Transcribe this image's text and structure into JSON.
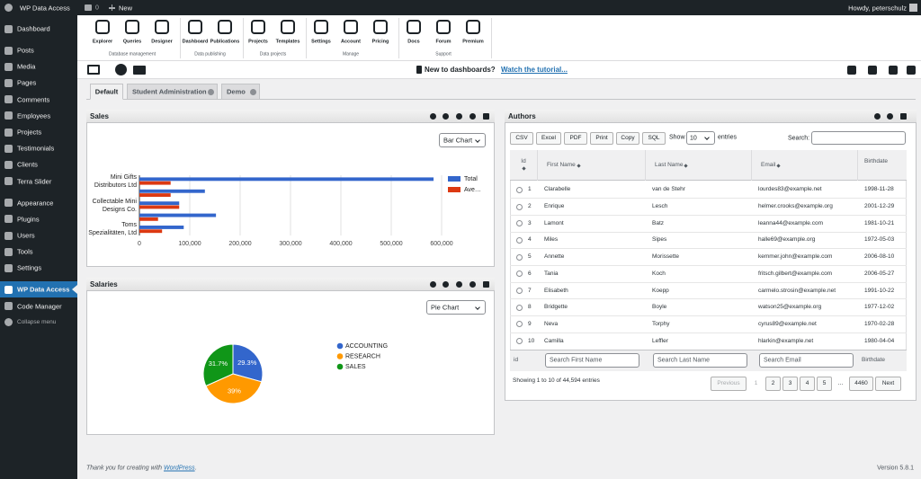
{
  "admin_bar": {
    "site_name": "WP Data Access",
    "comments": "0",
    "new": "New",
    "greeting": "Howdy, peterschulz"
  },
  "sidebar": {
    "items": [
      {
        "label": "Dashboard"
      },
      {
        "label": "Posts"
      },
      {
        "label": "Media"
      },
      {
        "label": "Pages"
      },
      {
        "label": "Comments"
      },
      {
        "label": "Employees"
      },
      {
        "label": "Projects"
      },
      {
        "label": "Testimonials"
      },
      {
        "label": "Clients"
      },
      {
        "label": "Terra Slider"
      },
      {
        "label": "Appearance"
      },
      {
        "label": "Plugins"
      },
      {
        "label": "Users"
      },
      {
        "label": "Tools"
      },
      {
        "label": "Settings"
      },
      {
        "label": "WP Data Access",
        "current": true
      },
      {
        "label": "Code Manager"
      },
      {
        "label": "Collapse menu"
      }
    ]
  },
  "toolbar": {
    "groups": [
      {
        "label": "Database management",
        "tools": [
          "Explorer",
          "Queries",
          "Designer"
        ]
      },
      {
        "label": "Data publishing",
        "tools": [
          "Dashboard",
          "Publications"
        ]
      },
      {
        "label": "Data projects",
        "tools": [
          "Projects",
          "Templates"
        ]
      },
      {
        "label": "Manage",
        "tools": [
          "Settings",
          "Account",
          "Pricing"
        ]
      },
      {
        "label": "Support",
        "tools": [
          "Docs",
          "Forum",
          "Premium"
        ]
      }
    ]
  },
  "notice": {
    "text": "New to dashboards?",
    "link": "Watch the tutorial..."
  },
  "tabs": [
    {
      "label": "Default",
      "active": true
    },
    {
      "label": "Student Administration"
    },
    {
      "label": "Demo"
    }
  ],
  "chart_data": [
    {
      "type": "bar",
      "orientation": "horizontal",
      "title": "Sales",
      "chart_selector": "Bar Chart",
      "categories": [
        "Mini Gifts Distributors Ltd",
        null,
        "Collectable Mini Designs Co.",
        null,
        "Toms Spezialitäten, Ltd"
      ],
      "series": [
        {
          "name": "Total",
          "color": "#3366cc",
          "values": [
            584000,
            130000,
            79000,
            152000,
            88000
          ]
        },
        {
          "name": "Ave…",
          "color": "#dc3912",
          "values": [
            62000,
            62000,
            79000,
            37000,
            45000
          ]
        }
      ],
      "xlim": [
        0,
        600000
      ],
      "xticks": [
        0,
        {
          "value": 100000,
          "label": "100,000"
        },
        {
          "value": 200000,
          "label": "200,000"
        },
        {
          "value": 300000,
          "label": "300,000"
        },
        {
          "value": 400000,
          "label": "400,000"
        },
        {
          "value": 500000,
          "label": "500,000"
        },
        {
          "value": 600000,
          "label": "600,000"
        }
      ],
      "grid": true,
      "legend": "right"
    },
    {
      "type": "pie",
      "title": "Salaries",
      "chart_selector": "Pie Chart",
      "categories": [
        "ACCOUNTING",
        "RESEARCH",
        "SALES"
      ],
      "values": [
        29.3,
        39,
        31.7
      ],
      "value_labels": [
        "29.3%",
        "39%",
        "31.7%"
      ],
      "colors": [
        "#3366cc",
        "#ff9900",
        "#109618"
      ],
      "legend": "right"
    }
  ],
  "authors": {
    "title": "Authors",
    "buttons": [
      "CSV",
      "Excel",
      "PDF",
      "Print",
      "Copy",
      "SQL"
    ],
    "length_label": "Show",
    "length_value": "10",
    "length_suffix": "entries",
    "search_label": "Search:",
    "columns": [
      "Id",
      "First Name",
      "Last Name",
      "Email",
      "Birthdate"
    ],
    "rows": [
      [
        1,
        "Clarabelle",
        "van de Stehr",
        "lourdes83@example.net",
        "1998-11-28"
      ],
      [
        2,
        "Enrique",
        "Lesch",
        "helmer.crooks@example.org",
        "2001-12-29"
      ],
      [
        3,
        "Lamont",
        "Batz",
        "leanna44@example.com",
        "1981-10-21"
      ],
      [
        4,
        "Miles",
        "Sipes",
        "halle69@example.org",
        "1972-05-03"
      ],
      [
        5,
        "Annette",
        "Morissette",
        "kemmer.john@example.com",
        "2006-08-10"
      ],
      [
        6,
        "Tania",
        "Koch",
        "fritsch.gilbert@example.com",
        "2006-05-27"
      ],
      [
        7,
        "Elisabeth",
        "Koepp",
        "carmelo.strosin@example.net",
        "1991-10-22"
      ],
      [
        8,
        "Bridgette",
        "Boyle",
        "watson25@example.org",
        "1977-12-02"
      ],
      [
        9,
        "Neva",
        "Torphy",
        "cyrus89@example.net",
        "1970-02-28"
      ],
      [
        10,
        "Camilla",
        "Leffler",
        "hlarkin@example.net",
        "1980-04-04"
      ]
    ],
    "footer": [
      "id",
      "Search First Name",
      "Search Last Name",
      "Search Email",
      "Birthdate"
    ],
    "info": "Showing 1 to 10 of 44,594 entries",
    "pagination": [
      "Previous",
      "1",
      "2",
      "3",
      "4",
      "5",
      "…",
      "4460",
      "Next"
    ]
  },
  "footer": {
    "credit": "Thank you for creating with",
    "link": "WordPress",
    "end": ".",
    "version": "Version 5.8.1"
  }
}
